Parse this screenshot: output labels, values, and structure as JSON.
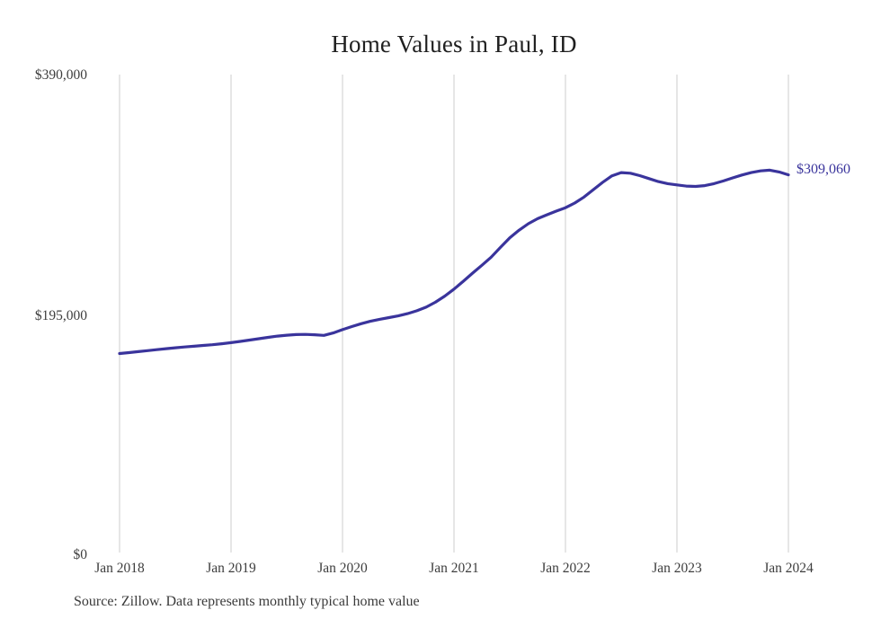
{
  "chart_data": {
    "type": "line",
    "title": "Home Values in Paul, ID",
    "source_note": "Source: Zillow. Data represents monthly typical home value",
    "series_name": "Monthly typical home value",
    "line_color": "#3a349c",
    "grid_color": "#cccccc",
    "grid": "vertical-only",
    "legend_position": "none",
    "end_label": "$309,060",
    "end_value": 309060,
    "ylim": [
      0,
      390000
    ],
    "ytick_values": [
      390000,
      195000,
      0
    ],
    "ytick_labels": [
      "$390,000",
      "$195,000",
      "$0"
    ],
    "xtick_labels": [
      "Jan 2018",
      "Jan 2019",
      "Jan 2020",
      "Jan 2021",
      "Jan 2022",
      "Jan 2023",
      "Jan 2024"
    ],
    "x": [
      "2018-01",
      "2018-02",
      "2018-03",
      "2018-04",
      "2018-05",
      "2018-06",
      "2018-07",
      "2018-08",
      "2018-09",
      "2018-10",
      "2018-11",
      "2018-12",
      "2019-01",
      "2019-02",
      "2019-03",
      "2019-04",
      "2019-05",
      "2019-06",
      "2019-07",
      "2019-08",
      "2019-09",
      "2019-10",
      "2019-11",
      "2019-12",
      "2020-01",
      "2020-02",
      "2020-03",
      "2020-04",
      "2020-05",
      "2020-06",
      "2020-07",
      "2020-08",
      "2020-09",
      "2020-10",
      "2020-11",
      "2020-12",
      "2021-01",
      "2021-02",
      "2021-03",
      "2021-04",
      "2021-05",
      "2021-06",
      "2021-07",
      "2021-08",
      "2021-09",
      "2021-10",
      "2021-11",
      "2021-12",
      "2022-01",
      "2022-02",
      "2022-03",
      "2022-04",
      "2022-05",
      "2022-06",
      "2022-07",
      "2022-08",
      "2022-09",
      "2022-10",
      "2022-11",
      "2022-12",
      "2023-01",
      "2023-02",
      "2023-03",
      "2023-04",
      "2023-05",
      "2023-06",
      "2023-07",
      "2023-08",
      "2023-09",
      "2023-10",
      "2023-11",
      "2023-12",
      "2024-01"
    ],
    "values": [
      163500,
      164300,
      165100,
      165900,
      166700,
      167500,
      168200,
      168900,
      169500,
      170100,
      170700,
      171500,
      172400,
      173400,
      174500,
      175600,
      176700,
      177700,
      178500,
      179000,
      179100,
      178800,
      178300,
      180300,
      183000,
      185500,
      187800,
      189800,
      191400,
      192800,
      194200,
      196000,
      198400,
      201300,
      205300,
      210300,
      216000,
      222400,
      229000,
      235400,
      242000,
      250000,
      257800,
      263900,
      269300,
      273400,
      276500,
      279500,
      282300,
      286100,
      291000,
      297000,
      302900,
      308300,
      310900,
      310400,
      308400,
      306000,
      303600,
      301900,
      300900,
      299900,
      299600,
      300300,
      301900,
      304100,
      306600,
      308900,
      310900,
      312300,
      312900,
      311400,
      309060
    ]
  }
}
